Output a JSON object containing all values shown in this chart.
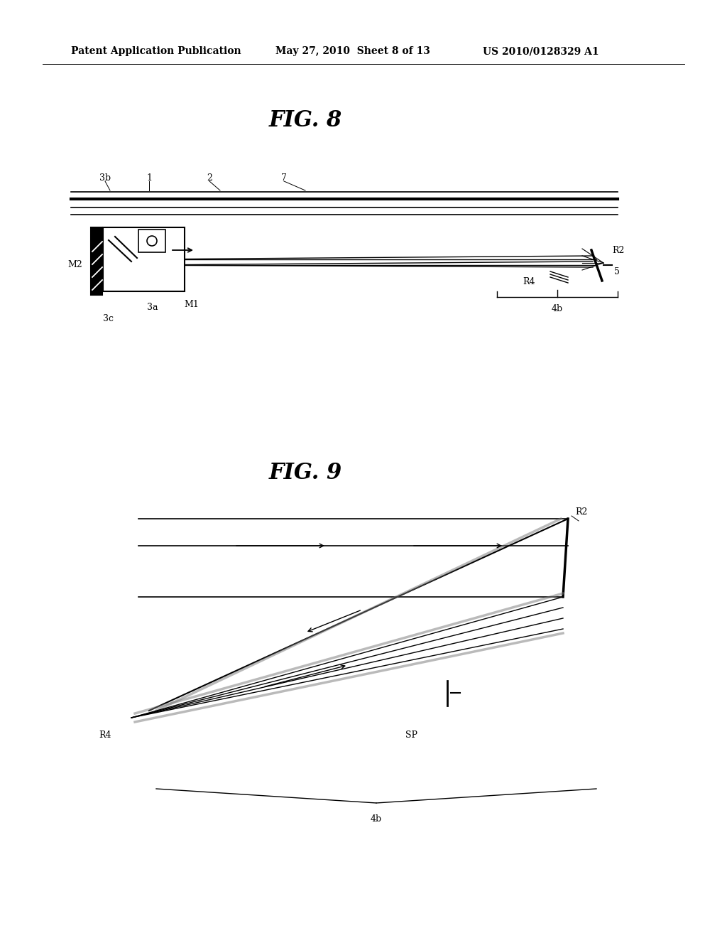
{
  "bg_color": "#ffffff",
  "header_text1": "Patent Application Publication",
  "header_text2": "May 27, 2010  Sheet 8 of 13",
  "header_text3": "US 2010/0128329 A1",
  "fig8_title": "FIG. 8",
  "fig9_title": "FIG. 9",
  "line_color": "#000000"
}
